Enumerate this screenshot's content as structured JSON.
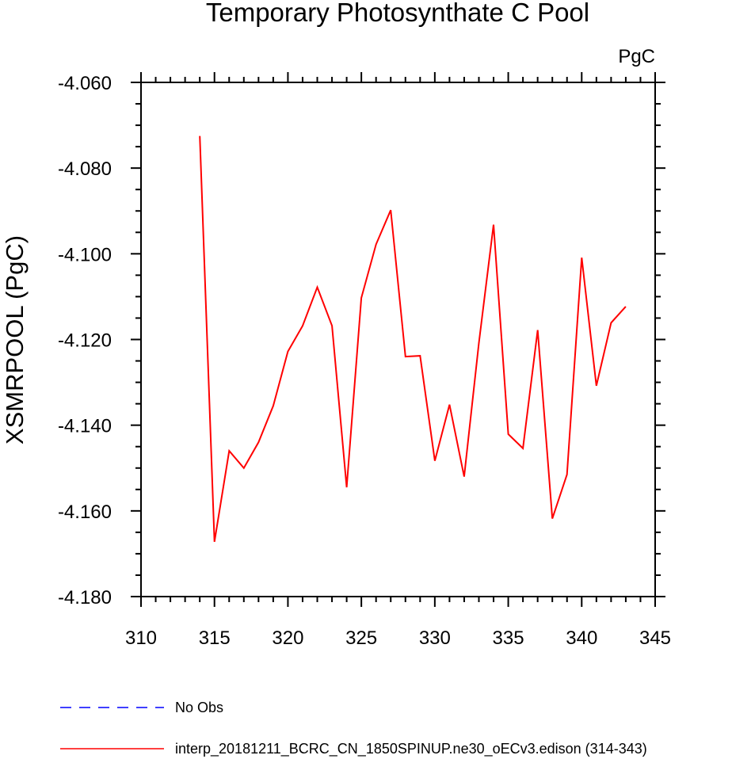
{
  "chart_data": {
    "type": "line",
    "title": "Temporary Photosynthate C Pool",
    "units_label": "PgC",
    "xlabel": "",
    "ylabel": "XSMRPOOL  (PgC)",
    "xlim": [
      310,
      345
    ],
    "ylim": [
      -4.18,
      -4.06
    ],
    "x_ticks": [
      310,
      315,
      320,
      325,
      330,
      335,
      340,
      345
    ],
    "x_tick_labels": [
      "310",
      "315",
      "320",
      "325",
      "330",
      "335",
      "340",
      "345"
    ],
    "y_ticks": [
      -4.18,
      -4.16,
      -4.14,
      -4.12,
      -4.1,
      -4.08,
      -4.06
    ],
    "y_tick_labels": [
      "-4.180",
      "-4.160",
      "-4.140",
      "-4.120",
      "-4.100",
      "-4.080",
      "-4.060"
    ],
    "grid": false,
    "legend_position": "bottom-left, below plot",
    "series": [
      {
        "name": "No Obs",
        "color": "#0000ff",
        "style": "dashed",
        "x": [],
        "values": []
      },
      {
        "name": "interp_20181211_BCRC_CN_1850SPINUP.ne30_oECv3.edison (314-343)",
        "color": "#ff0000",
        "style": "solid",
        "x": [
          314,
          315,
          316,
          317,
          318,
          319,
          320,
          321,
          322,
          323,
          324,
          325,
          326,
          327,
          328,
          329,
          330,
          331,
          332,
          333,
          334,
          335,
          336,
          337,
          338,
          339,
          340,
          341,
          342,
          343
        ],
        "values": [
          -4.0725,
          -4.1672,
          -4.146,
          -4.15,
          -4.144,
          -4.1355,
          -4.1228,
          -4.1168,
          -4.1078,
          -4.1168,
          -4.1545,
          -4.1103,
          -4.0978,
          -4.0898,
          -4.124,
          -4.1238,
          -4.1483,
          -4.1352,
          -4.152,
          -4.1208,
          -4.0932,
          -4.1421,
          -4.1454,
          -4.1178,
          -4.1618,
          -4.1515,
          -4.1009,
          -4.1308,
          -4.1161,
          -4.1123
        ]
      }
    ]
  }
}
